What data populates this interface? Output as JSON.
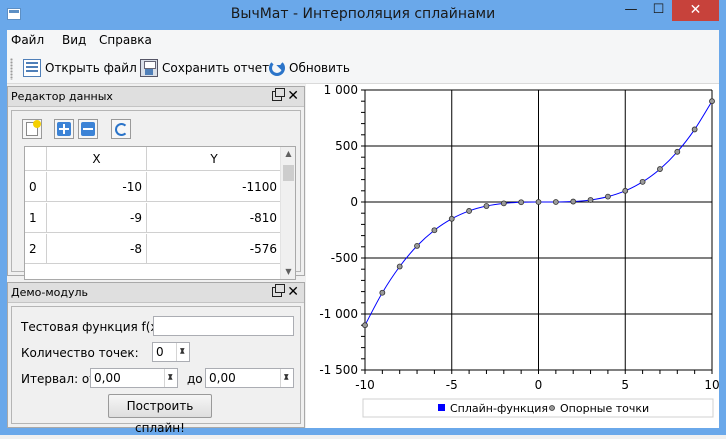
{
  "window": {
    "title": "ВычМат - Интерполяция сплайнами",
    "minimize_glyph": "—",
    "maximize_glyph": "☐",
    "close_glyph": "✕"
  },
  "menu": [
    "Файл",
    "Вид",
    "Справка"
  ],
  "toolbar": {
    "open_label": "Открыть файл",
    "save_label": "Сохранить отчет",
    "refresh_label": "Обновить"
  },
  "data_editor": {
    "title": "Редактор данных",
    "close_glyph": "✕",
    "columns": [
      "X",
      "Y"
    ],
    "rows": [
      {
        "num": "0",
        "x": "-10",
        "y": "-1100"
      },
      {
        "num": "1",
        "x": "-9",
        "y": "-810"
      },
      {
        "num": "2",
        "x": "-8",
        "y": "-576"
      }
    ]
  },
  "demo": {
    "title": "Демо-модуль",
    "close_glyph": "✕",
    "func_label": "Тестовая функция f(x)=",
    "func_value": "",
    "count_label": "Количество точек:",
    "count_value": "0",
    "interval_label": "Итервал: от",
    "from_value": "0,00",
    "to_label": "до",
    "to_value": "0,00",
    "build_button": "Построить сплайн!"
  },
  "chart_data": {
    "type": "line",
    "xlim": [
      -10,
      10
    ],
    "ylim": [
      -1500,
      1000
    ],
    "x_ticks": [
      -10,
      -5,
      0,
      5,
      10
    ],
    "x_tick_labels": [
      "-10",
      "-5",
      "0",
      "5",
      "10"
    ],
    "y_ticks": [
      1000,
      500,
      0,
      -500,
      -1000,
      -1500
    ],
    "y_tick_labels": [
      "1 000",
      "500",
      "0",
      "-500",
      "-1 000",
      "-1 500"
    ],
    "grid": true,
    "legend_position": "bottom",
    "series": [
      {
        "name": "Сплайн-функция",
        "style": "line",
        "color": "#0000ff"
      },
      {
        "name": "Опорные точки",
        "style": "markers",
        "color": "#888888"
      }
    ],
    "x": [
      -10,
      -9,
      -8,
      -7,
      -6,
      -5,
      -4,
      -3,
      -2,
      -1,
      0,
      1,
      2,
      3,
      4,
      5,
      6,
      7,
      8,
      9,
      10
    ],
    "y": [
      -1100,
      -810,
      -576,
      -392,
      -252,
      -150,
      -80,
      -36,
      -12,
      -2,
      0,
      0,
      4,
      18,
      48,
      100,
      180,
      294,
      448,
      648,
      900
    ]
  }
}
